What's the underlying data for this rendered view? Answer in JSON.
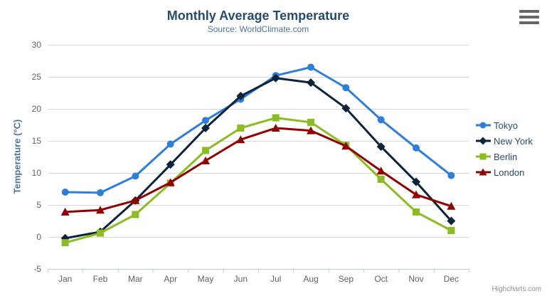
{
  "chart_data": {
    "type": "line",
    "title": "Monthly Average Temperature",
    "subtitle": "Source: WorldClimate.com",
    "xlabel": "",
    "ylabel": "Temperature (°C)",
    "categories": [
      "Jan",
      "Feb",
      "Mar",
      "Apr",
      "May",
      "Jun",
      "Jul",
      "Aug",
      "Sep",
      "Oct",
      "Nov",
      "Dec"
    ],
    "ylim": [
      -5,
      30
    ],
    "yticks": [
      -5,
      0,
      5,
      10,
      15,
      20,
      25,
      30
    ],
    "grid": "horizontal",
    "legend_position": "right",
    "series": [
      {
        "name": "Tokyo",
        "color": "#2f7ed8",
        "marker": "circle",
        "values": [
          7.0,
          6.9,
          9.5,
          14.5,
          18.2,
          21.5,
          25.2,
          26.5,
          23.3,
          18.3,
          13.9,
          9.6
        ]
      },
      {
        "name": "New York",
        "color": "#0d233a",
        "marker": "diamond",
        "values": [
          -0.2,
          0.8,
          5.7,
          11.3,
          17.0,
          22.0,
          24.8,
          24.1,
          20.1,
          14.1,
          8.6,
          2.5
        ]
      },
      {
        "name": "Berlin",
        "color": "#8bbc21",
        "marker": "square",
        "values": [
          -0.9,
          0.6,
          3.5,
          8.4,
          13.5,
          17.0,
          18.6,
          17.9,
          14.3,
          9.0,
          3.9,
          1.0
        ]
      },
      {
        "name": "London",
        "color": "#910000",
        "marker": "triangle",
        "values": [
          3.9,
          4.2,
          5.7,
          8.5,
          11.9,
          15.2,
          17.0,
          16.6,
          14.2,
          10.3,
          6.6,
          4.8
        ]
      }
    ]
  },
  "credits": "Highcharts.com",
  "icons": {
    "menu": "hamburger-menu-icon"
  },
  "colors": {
    "title": "#274b6d",
    "subtitle": "#4d759e",
    "axis_labels": "#606060",
    "axis_title": "#4d759e",
    "grid_line": "#d8d8d8",
    "axis_line": "#c0d0e0",
    "legend_text": "#274b6d",
    "credits_text": "#909090",
    "menu_icon": "#666666",
    "background": "#ffffff"
  }
}
